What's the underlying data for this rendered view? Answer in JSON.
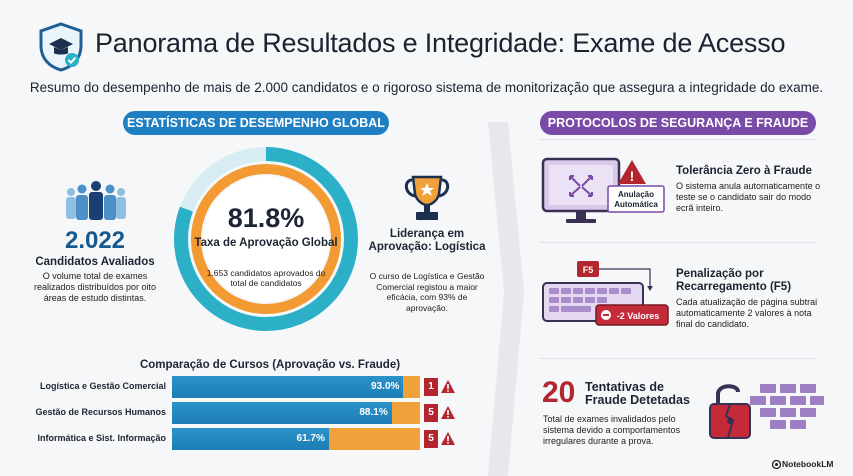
{
  "header": {
    "title": "Panorama de Resultados e Integridade: Exame de Acesso",
    "subtitle": "Resumo do desempenho de mais de 2.000 candidatos e o rigoroso sistema de monitorização que assegura a integridade do exame."
  },
  "left": {
    "pill": "ESTATÍSTICAS DE DESEMPENHO GLOBAL",
    "candidates": {
      "count": "2.022",
      "label": "Candidatos Avaliados",
      "desc": "O volume total de exames realizados distribuídos por oito áreas de estudo distintas."
    },
    "donut": {
      "pct": "81.8%",
      "label": "Taxa de Aprovação Global",
      "desc": "1.653 candidatos aprovados do total de candidatos",
      "value": 81.8
    },
    "leader": {
      "title": "Liderança em Aprovação: Logística",
      "desc": "O curso de Logística e Gestão Comercial registou a maior eficácia, com 93% de aprovação."
    },
    "bars_title": "Comparação de Cursos (Aprovação vs. Fraude)",
    "bars": [
      {
        "label": "Logística e Gestão Comercial",
        "pct_text": "93.0%",
        "value": 93.0,
        "fraud": "1"
      },
      {
        "label": "Gestão de Recursos Humanos",
        "pct_text": "88.1%",
        "value": 88.1,
        "fraud": "5"
      },
      {
        "label": "Informática e Sist. Informação",
        "pct_text": "61.7%",
        "value": 61.7,
        "fraud": "5"
      }
    ]
  },
  "right": {
    "pill": "PROTOCOLOS DE SEGURANÇA E FRAUDE",
    "zero": {
      "title": "Tolerância Zero à Fraude",
      "desc": "O sistema anula automaticamente o teste se o candidato sair do modo ecrã inteiro.",
      "badge_line1": "Anulação",
      "badge_line2": "Automática"
    },
    "reload": {
      "title_line1": "Penalização por",
      "title_line2": "Recarregamento (F5)",
      "desc": "Cada atualização de página subtrai automaticamente 2 valores à nota final do candidato.",
      "key": "F5",
      "penalty": "-2 Valores"
    },
    "attempts": {
      "count": "20",
      "title_line1": "Tentativas de",
      "title_line2": "Fraude Detetadas",
      "desc": "Total de exames invalidados pelo sistema devido a comportamentos irregulares durante a prova."
    }
  },
  "footer": "NotebookLM",
  "colors": {
    "blue": "#1f7fc2",
    "purple": "#7a4aa7",
    "orange": "#f0a13a",
    "teal": "#2bb0c8",
    "red": "#b3262f"
  }
}
